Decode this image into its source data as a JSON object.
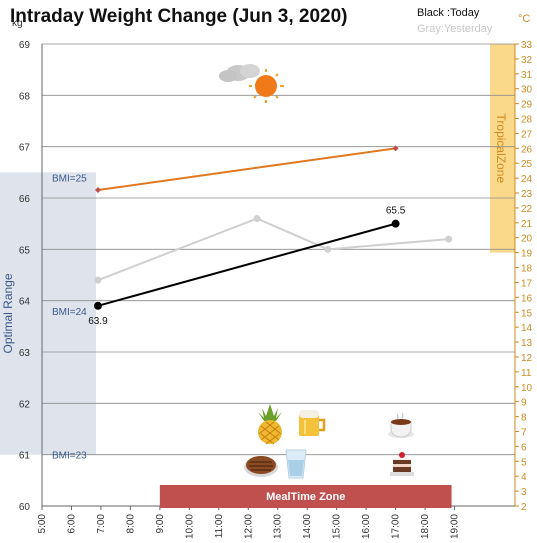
{
  "chart_data": {
    "type": "line",
    "title": "Intraday Weight Change (Jun 3, 2020)",
    "legend": {
      "today": "Black :Today",
      "yesterday": "Gray:Yesterday"
    },
    "y_unit": "kg",
    "y2_unit": "°C",
    "ylim": [
      60,
      69
    ],
    "y_ticks": [
      "60",
      "61",
      "62",
      "63",
      "64",
      "65",
      "66",
      "67",
      "68",
      "69"
    ],
    "y2lim": [
      2,
      33
    ],
    "y2_ticks": [
      "2",
      "3",
      "4",
      "5",
      "6",
      "7",
      "8",
      "9",
      "10",
      "11",
      "12",
      "13",
      "14",
      "15",
      "16",
      "17",
      "18",
      "19",
      "20",
      "21",
      "22",
      "23",
      "24",
      "25",
      "26",
      "27",
      "28",
      "29",
      "30",
      "31",
      "32",
      "33"
    ],
    "xlim": [
      5,
      20
    ],
    "x_ticks": [
      "5:00",
      "6:00",
      "7:00",
      "8:00",
      "9:00",
      "10:00",
      "11:00",
      "12:00",
      "13:00",
      "14:00",
      "15:00",
      "16:00",
      "17:00",
      "18:00",
      "19:00"
    ],
    "grid": true,
    "bmi_lines": [
      {
        "label": "BMI=25",
        "y": 66.4
      },
      {
        "label": "BMI=24",
        "y": 63.8
      },
      {
        "label": "BMI=23",
        "y": 61.0
      }
    ],
    "optimal_range": {
      "label": "Optimal Range",
      "ymin": 61.0,
      "ymax": 66.5
    },
    "tropical_zone": {
      "label": "TropicalZone",
      "y2min": 19,
      "y2max": 33
    },
    "meal_zone": {
      "label": "MealTime Zone",
      "xmin": 9,
      "xmax": 18.9
    },
    "series": [
      {
        "name": "Today",
        "color": "#000000",
        "points": [
          [
            6.9,
            63.9
          ],
          [
            17.0,
            65.5
          ]
        ],
        "labels": [
          "63.9",
          "65.5"
        ]
      },
      {
        "name": "Yesterday",
        "color": "#d0d0d0",
        "points": [
          [
            6.9,
            64.4
          ],
          [
            12.3,
            65.6
          ],
          [
            14.7,
            65.0
          ],
          [
            18.8,
            65.2
          ]
        ]
      }
    ],
    "temperature": {
      "color": "#e07820",
      "points": [
        [
          6.9,
          23.2
        ],
        [
          17.0,
          26.0
        ]
      ]
    },
    "icons": [
      "cloud-sun-icon",
      "pineapple-icon",
      "beer-icon",
      "coffee-icon",
      "steak-icon",
      "water-glass-icon",
      "cake-icon"
    ]
  }
}
